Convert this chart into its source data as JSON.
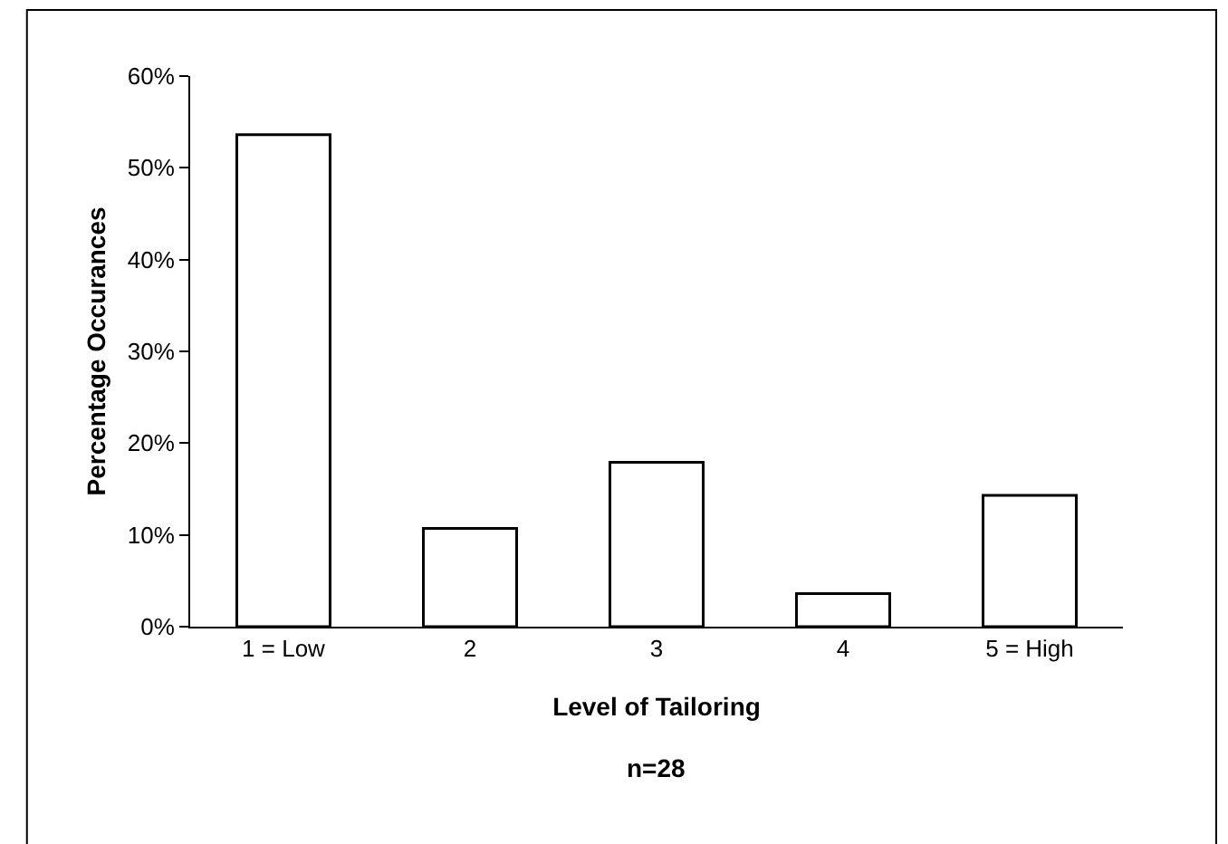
{
  "chart_data": {
    "type": "bar",
    "xlabel": "Level of Tailoring",
    "ylabel": "Percentage Occurances",
    "categories": [
      "1 = Low",
      "2",
      "3",
      "4",
      "5 = High"
    ],
    "values": [
      53.6,
      10.7,
      17.9,
      3.6,
      14.3
    ],
    "color": "#ffffff",
    "ylim": [
      0,
      60
    ],
    "yticks": [
      {
        "value": 0,
        "label": "0%"
      },
      {
        "value": 10,
        "label": "10%"
      },
      {
        "value": 20,
        "label": "20%"
      },
      {
        "value": 30,
        "label": "30%"
      },
      {
        "value": 40,
        "label": "40%"
      },
      {
        "value": 50,
        "label": "50%"
      },
      {
        "value": 60,
        "label": "60%"
      }
    ],
    "annotations": [
      "n=28"
    ]
  }
}
